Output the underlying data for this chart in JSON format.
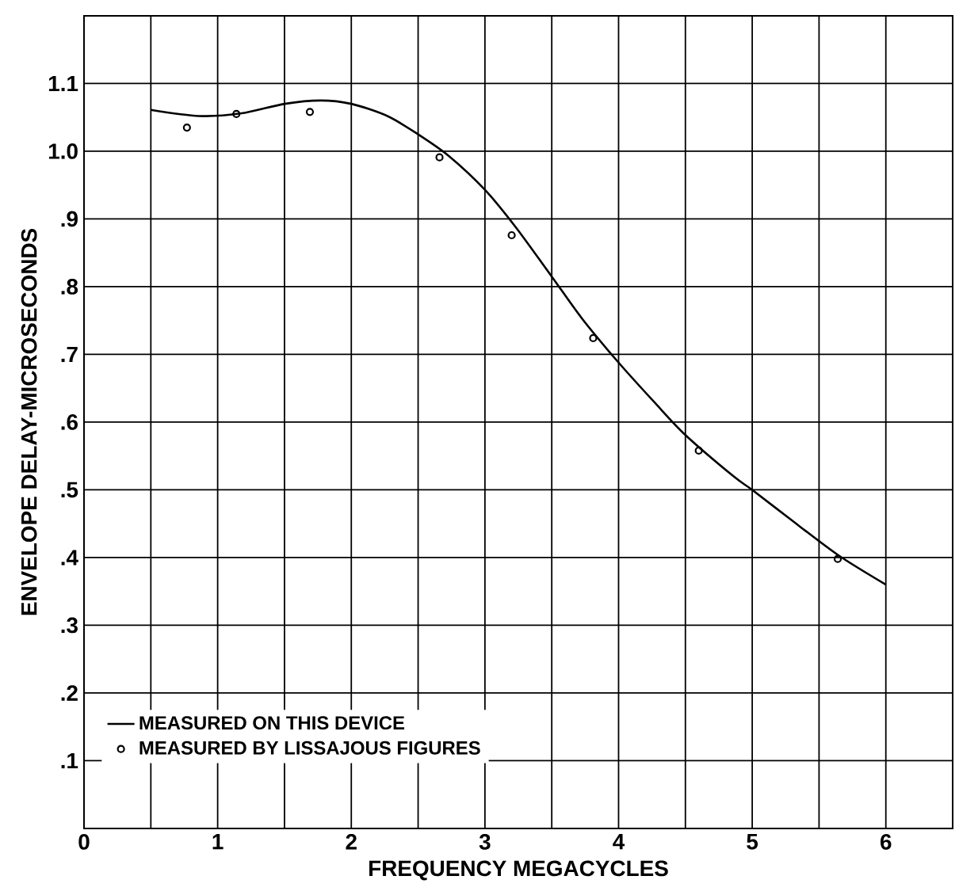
{
  "chart_data": {
    "type": "line",
    "xlabel": "FREQUENCY MEGACYCLES",
    "ylabel": "ENVELOPE DELAY-MICROSECONDS",
    "xlim": [
      0,
      6.5
    ],
    "ylim": [
      0,
      1.2
    ],
    "xticks": [
      0,
      {
        "value": 0.5,
        "label": null
      },
      1,
      {
        "value": 1.5,
        "label": null
      },
      2,
      {
        "value": 2.5,
        "label": null
      },
      3,
      {
        "value": 3.5,
        "label": null
      },
      4,
      {
        "value": 4.5,
        "label": null
      },
      5,
      {
        "value": 5.5,
        "label": null
      },
      6
    ],
    "yticks": [
      {
        "value": 0.1,
        "label": ".1"
      },
      {
        "value": 0.2,
        "label": ".2"
      },
      {
        "value": 0.3,
        "label": ".3"
      },
      {
        "value": 0.4,
        "label": ".4"
      },
      {
        "value": 0.5,
        "label": ".5"
      },
      {
        "value": 0.6,
        "label": ".6"
      },
      {
        "value": 0.7,
        "label": ".7"
      },
      {
        "value": 0.8,
        "label": ".8"
      },
      {
        "value": 0.9,
        "label": ".9"
      },
      {
        "value": 1.0,
        "label": "1.0"
      },
      {
        "value": 1.1,
        "label": "1.1"
      }
    ],
    "grid": true,
    "legend": "bottom left",
    "series": [
      {
        "name": "MEASURED ON THIS DEVICE",
        "color": "#000000",
        "marker": "none",
        "line_style": "solid",
        "x": [
          0.5,
          0.86,
          1.18,
          1.5,
          1.77,
          2.0,
          2.27,
          2.5,
          2.73,
          3.0,
          3.23,
          3.5,
          3.73,
          4.0,
          4.27,
          4.5,
          4.86,
          5.0,
          5.27,
          5.64,
          6.0
        ],
        "values": [
          1.061,
          1.052,
          1.056,
          1.07,
          1.075,
          1.07,
          1.052,
          1.025,
          0.993,
          0.943,
          0.888,
          0.815,
          0.752,
          0.688,
          0.629,
          0.581,
          0.52,
          0.5,
          0.459,
          0.404,
          0.36
        ]
      },
      {
        "name": "MEASURED BY LISSAJOUS FIGURES",
        "type": "scatter",
        "color": "#000000",
        "marker": "circle",
        "x": [
          0.77,
          1.14,
          1.69,
          2.66,
          3.2,
          3.81,
          4.6,
          5.64
        ],
        "values": [
          1.035,
          1.055,
          1.058,
          0.991,
          0.876,
          0.724,
          0.558,
          0.398
        ]
      }
    ]
  }
}
